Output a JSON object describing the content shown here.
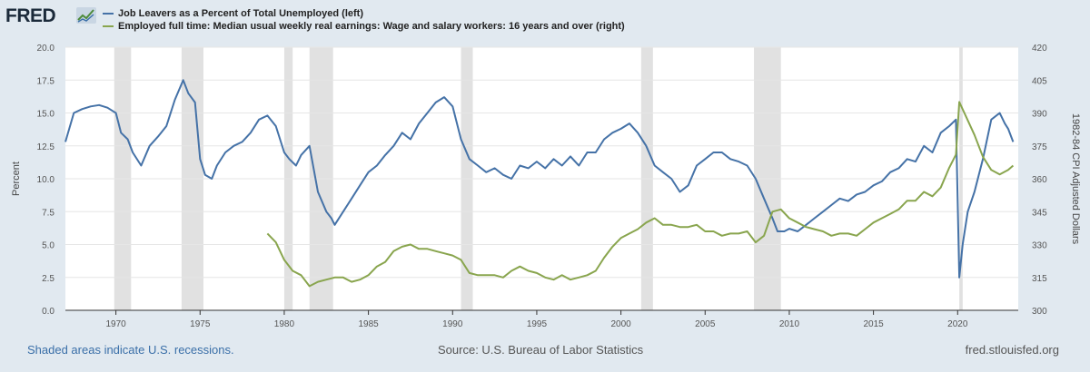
{
  "brand": {
    "logo_text": "FRED",
    "icon": "trend-chart-icon"
  },
  "legend": [
    {
      "label": "Job Leavers as a Percent of Total Unemployed (left)",
      "color": "#4572a7"
    },
    {
      "label": "Employed full time: Median usual weekly real earnings: Wage and salary workers: 16 years and over (right)",
      "color": "#89a54e"
    }
  ],
  "footer": {
    "note": "Shaded areas indicate U.S. recessions.",
    "source": "Source: U.S. Bureau of Labor Statistics",
    "site": "fred.stlouisfed.org"
  },
  "chart_data": {
    "type": "line",
    "xlim": [
      1967,
      2023.6
    ],
    "x_ticks": [
      1970,
      1975,
      1980,
      1985,
      1990,
      1995,
      2000,
      2005,
      2010,
      2015,
      2020
    ],
    "y_left": {
      "label": "Percent",
      "range": [
        0,
        20
      ],
      "ticks": [
        "0.0",
        "2.5",
        "5.0",
        "7.5",
        "10.0",
        "12.5",
        "15.0",
        "17.5",
        "20.0"
      ]
    },
    "y_right": {
      "label": "1982-84 CPI Adjusted Dollars",
      "range": [
        300,
        420
      ],
      "ticks": [
        "300",
        "315",
        "330",
        "345",
        "360",
        "375",
        "390",
        "405",
        "420"
      ]
    },
    "grid": true,
    "recessions": [
      [
        1969.9,
        1970.9
      ],
      [
        1973.9,
        1975.2
      ],
      [
        1980.0,
        1980.5
      ],
      [
        1981.5,
        1982.9
      ],
      [
        1990.5,
        1991.2
      ],
      [
        2001.2,
        2001.9
      ],
      [
        2007.9,
        2009.5
      ],
      [
        2020.1,
        2020.3
      ]
    ],
    "series": [
      {
        "name": "Job Leavers as a Percent of Total Unemployed (left)",
        "axis": "left",
        "color": "#4572a7",
        "x": [
          1967,
          1967.5,
          1968,
          1968.5,
          1969,
          1969.5,
          1970,
          1970.3,
          1970.7,
          1971,
          1971.5,
          1972,
          1972.5,
          1973,
          1973.5,
          1974,
          1974.3,
          1974.7,
          1975,
          1975.3,
          1975.7,
          1976,
          1976.5,
          1977,
          1977.5,
          1978,
          1978.5,
          1979,
          1979.5,
          1980,
          1980.3,
          1980.7,
          1981,
          1981.5,
          1982,
          1982.5,
          1982.8,
          1983,
          1983.5,
          1984,
          1984.5,
          1985,
          1985.5,
          1986,
          1986.5,
          1987,
          1987.5,
          1988,
          1988.5,
          1989,
          1989.5,
          1990,
          1990.5,
          1991,
          1991.5,
          1992,
          1992.5,
          1993,
          1993.5,
          1994,
          1994.5,
          1995,
          1995.5,
          1996,
          1996.5,
          1997,
          1997.5,
          1998,
          1998.5,
          1999,
          1999.5,
          2000,
          2000.5,
          2001,
          2001.5,
          2002,
          2002.5,
          2003,
          2003.5,
          2004,
          2004.5,
          2005,
          2005.5,
          2006,
          2006.5,
          2007,
          2007.5,
          2008,
          2008.5,
          2009,
          2009.3,
          2009.7,
          2010,
          2010.5,
          2011,
          2011.5,
          2012,
          2012.5,
          2013,
          2013.5,
          2014,
          2014.5,
          2015,
          2015.5,
          2016,
          2016.5,
          2017,
          2017.5,
          2018,
          2018.5,
          2019,
          2019.5,
          2019.9,
          2020.1,
          2020.3,
          2020.6,
          2021,
          2021.5,
          2022,
          2022.5,
          2022.8,
          2023,
          2023.3
        ],
        "y": [
          12.8,
          15.0,
          15.3,
          15.5,
          15.6,
          15.4,
          15.0,
          13.5,
          13.0,
          12.0,
          11.0,
          12.5,
          13.2,
          14.0,
          16.0,
          17.5,
          16.5,
          15.8,
          11.5,
          10.3,
          10.0,
          11.0,
          12.0,
          12.5,
          12.8,
          13.5,
          14.5,
          14.8,
          14.0,
          12.0,
          11.5,
          11.0,
          11.8,
          12.5,
          9.0,
          7.5,
          7.0,
          6.5,
          7.5,
          8.5,
          9.5,
          10.5,
          11.0,
          11.8,
          12.5,
          13.5,
          13.0,
          14.2,
          15.0,
          15.8,
          16.2,
          15.5,
          13.0,
          11.5,
          11.0,
          10.5,
          10.8,
          10.3,
          10.0,
          11.0,
          10.8,
          11.3,
          10.8,
          11.5,
          11.0,
          11.7,
          11.0,
          12.0,
          12.0,
          13.0,
          13.5,
          13.8,
          14.2,
          13.5,
          12.5,
          11.0,
          10.5,
          10.0,
          9.0,
          9.5,
          11.0,
          11.5,
          12.0,
          12.0,
          11.5,
          11.3,
          11.0,
          10.0,
          8.5,
          7.0,
          6.0,
          6.0,
          6.2,
          6.0,
          6.5,
          7.0,
          7.5,
          8.0,
          8.5,
          8.3,
          8.8,
          9.0,
          9.5,
          9.8,
          10.5,
          10.8,
          11.5,
          11.3,
          12.5,
          12.0,
          13.5,
          14.0,
          14.5,
          2.5,
          5.0,
          7.5,
          9.0,
          11.5,
          14.5,
          15.0,
          14.2,
          13.8,
          12.8
        ]
      },
      {
        "name": "Employed full time: Median usual weekly real earnings: Wage and salary workers: 16 years and over (right)",
        "axis": "right",
        "color": "#89a54e",
        "x": [
          1979,
          1979.5,
          1980,
          1980.5,
          1981,
          1981.5,
          1982,
          1982.5,
          1983,
          1983.5,
          1984,
          1984.5,
          1985,
          1985.5,
          1986,
          1986.5,
          1987,
          1987.5,
          1988,
          1988.5,
          1989,
          1989.5,
          1990,
          1990.5,
          1991,
          1991.5,
          1992,
          1992.5,
          1993,
          1993.5,
          1994,
          1994.5,
          1995,
          1995.5,
          1996,
          1996.5,
          1997,
          1997.5,
          1998,
          1998.5,
          1999,
          1999.5,
          2000,
          2000.5,
          2001,
          2001.5,
          2002,
          2002.5,
          2003,
          2003.5,
          2004,
          2004.5,
          2005,
          2005.5,
          2006,
          2006.5,
          2007,
          2007.5,
          2008,
          2008.5,
          2009,
          2009.5,
          2010,
          2010.5,
          2011,
          2011.5,
          2012,
          2012.5,
          2013,
          2013.5,
          2014,
          2014.5,
          2015,
          2015.5,
          2016,
          2016.5,
          2017,
          2017.5,
          2018,
          2018.5,
          2019,
          2019.5,
          2019.9,
          2020.1,
          2020.4,
          2021,
          2021.5,
          2022,
          2022.5,
          2023,
          2023.3
        ],
        "y": [
          335,
          331,
          323,
          318,
          316,
          311,
          313,
          314,
          315,
          315,
          313,
          314,
          316,
          320,
          322,
          327,
          329,
          330,
          328,
          328,
          327,
          326,
          325,
          323,
          317,
          316,
          316,
          316,
          315,
          318,
          320,
          318,
          317,
          315,
          314,
          316,
          314,
          315,
          316,
          318,
          324,
          329,
          333,
          335,
          337,
          340,
          342,
          339,
          339,
          338,
          338,
          339,
          336,
          336,
          334,
          335,
          335,
          336,
          331,
          334,
          345,
          346,
          342,
          340,
          338,
          337,
          336,
          334,
          335,
          335,
          334,
          337,
          340,
          342,
          344,
          346,
          350,
          350,
          354,
          352,
          356,
          365,
          371,
          395,
          390,
          380,
          370,
          364,
          362,
          364,
          366
        ]
      }
    ]
  }
}
